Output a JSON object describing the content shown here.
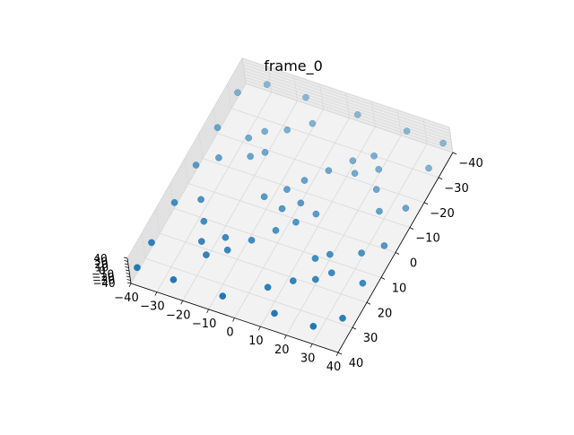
{
  "chart_data": {
    "type": "scatter",
    "title": "frame_0",
    "projection": "3d",
    "grid": true,
    "xlabel": "",
    "ylabel": "",
    "zlabel": "",
    "xlim": [
      -40,
      40
    ],
    "ylim": [
      -40,
      40
    ],
    "zlim": [
      -40,
      40
    ],
    "x_ticks": [
      "−40",
      "−30",
      "−20",
      "−10",
      "0",
      "10",
      "20",
      "30",
      "40"
    ],
    "y_ticks": [
      "−40",
      "−30",
      "−20",
      "−10",
      "0",
      "10",
      "20",
      "30",
      "40"
    ],
    "z_ticks": [
      "40",
      "30",
      "20",
      "10",
      "0",
      "−10",
      "−20",
      "−30",
      "−40"
    ],
    "marker_color": "#1f77b4",
    "pane_color": "#f2f2f2",
    "grid_color": "#d9d9d9",
    "points": [
      {
        "x": -38,
        "y": -38,
        "z": 0
      },
      {
        "x": -24,
        "y": -38,
        "z": 0
      },
      {
        "x": -5,
        "y": -38,
        "z": 0
      },
      {
        "x": 15,
        "y": -38,
        "z": 0
      },
      {
        "x": 30,
        "y": -38,
        "z": 0
      },
      {
        "x": 38,
        "y": -32,
        "z": 0
      },
      {
        "x": 38,
        "y": -18,
        "z": 0
      },
      {
        "x": 38,
        "y": -3,
        "z": 0
      },
      {
        "x": 38,
        "y": 12,
        "z": 0
      },
      {
        "x": 38,
        "y": 28,
        "z": 0
      },
      {
        "x": 38,
        "y": 38,
        "z": 0
      },
      {
        "x": 24,
        "y": 38,
        "z": 0
      },
      {
        "x": 5,
        "y": 38,
        "z": 0
      },
      {
        "x": -15,
        "y": 38,
        "z": 0
      },
      {
        "x": -30,
        "y": 38,
        "z": 0
      },
      {
        "x": -38,
        "y": 32,
        "z": 0
      },
      {
        "x": -38,
        "y": 18,
        "z": 0
      },
      {
        "x": -38,
        "y": 3,
        "z": 0
      },
      {
        "x": -38,
        "y": -12,
        "z": 0
      },
      {
        "x": -38,
        "y": -28,
        "z": 0
      },
      {
        "x": -22,
        "y": -22,
        "z": 0
      },
      {
        "x": -18,
        "y": -26,
        "z": 0
      },
      {
        "x": -15,
        "y": -18,
        "z": 0
      },
      {
        "x": -25,
        "y": -15,
        "z": 0
      },
      {
        "x": -12,
        "y": -22,
        "z": 0
      },
      {
        "x": 22,
        "y": -22,
        "z": 0
      },
      {
        "x": 26,
        "y": -18,
        "z": 0
      },
      {
        "x": 18,
        "y": -15,
        "z": 0
      },
      {
        "x": 15,
        "y": -25,
        "z": 0
      },
      {
        "x": 22,
        "y": -12,
        "z": 0
      },
      {
        "x": 22,
        "y": 22,
        "z": 0
      },
      {
        "x": 18,
        "y": 26,
        "z": 0
      },
      {
        "x": 15,
        "y": 18,
        "z": 0
      },
      {
        "x": 25,
        "y": 15,
        "z": 0
      },
      {
        "x": 12,
        "y": 22,
        "z": 0
      },
      {
        "x": -22,
        "y": 22,
        "z": 0
      },
      {
        "x": -26,
        "y": 18,
        "z": 0
      },
      {
        "x": -18,
        "y": 15,
        "z": 0
      },
      {
        "x": -15,
        "y": 25,
        "z": 0
      },
      {
        "x": -22,
        "y": 12,
        "z": 0
      },
      {
        "x": -2,
        "y": -2,
        "z": 0
      },
      {
        "x": 3,
        "y": 2,
        "z": 0
      },
      {
        "x": -4,
        "y": 5,
        "z": 0
      },
      {
        "x": 5,
        "y": -5,
        "z": 0
      },
      {
        "x": -10,
        "y": 0,
        "z": 0
      },
      {
        "x": 10,
        "y": 0,
        "z": 0
      },
      {
        "x": 0,
        "y": 10,
        "z": 0
      },
      {
        "x": 0,
        "y": -10,
        "z": 0
      },
      {
        "x": -30,
        "y": -8,
        "z": 0
      },
      {
        "x": 30,
        "y": 8,
        "z": 0
      },
      {
        "x": 8,
        "y": -30,
        "z": 0
      },
      {
        "x": -8,
        "y": 30,
        "z": 0
      },
      {
        "x": -6,
        "y": -16,
        "z": 0
      },
      {
        "x": 6,
        "y": 16,
        "z": 0
      },
      {
        "x": -32,
        "y": 8,
        "z": 0
      },
      {
        "x": 32,
        "y": -8,
        "z": 0
      }
    ]
  }
}
